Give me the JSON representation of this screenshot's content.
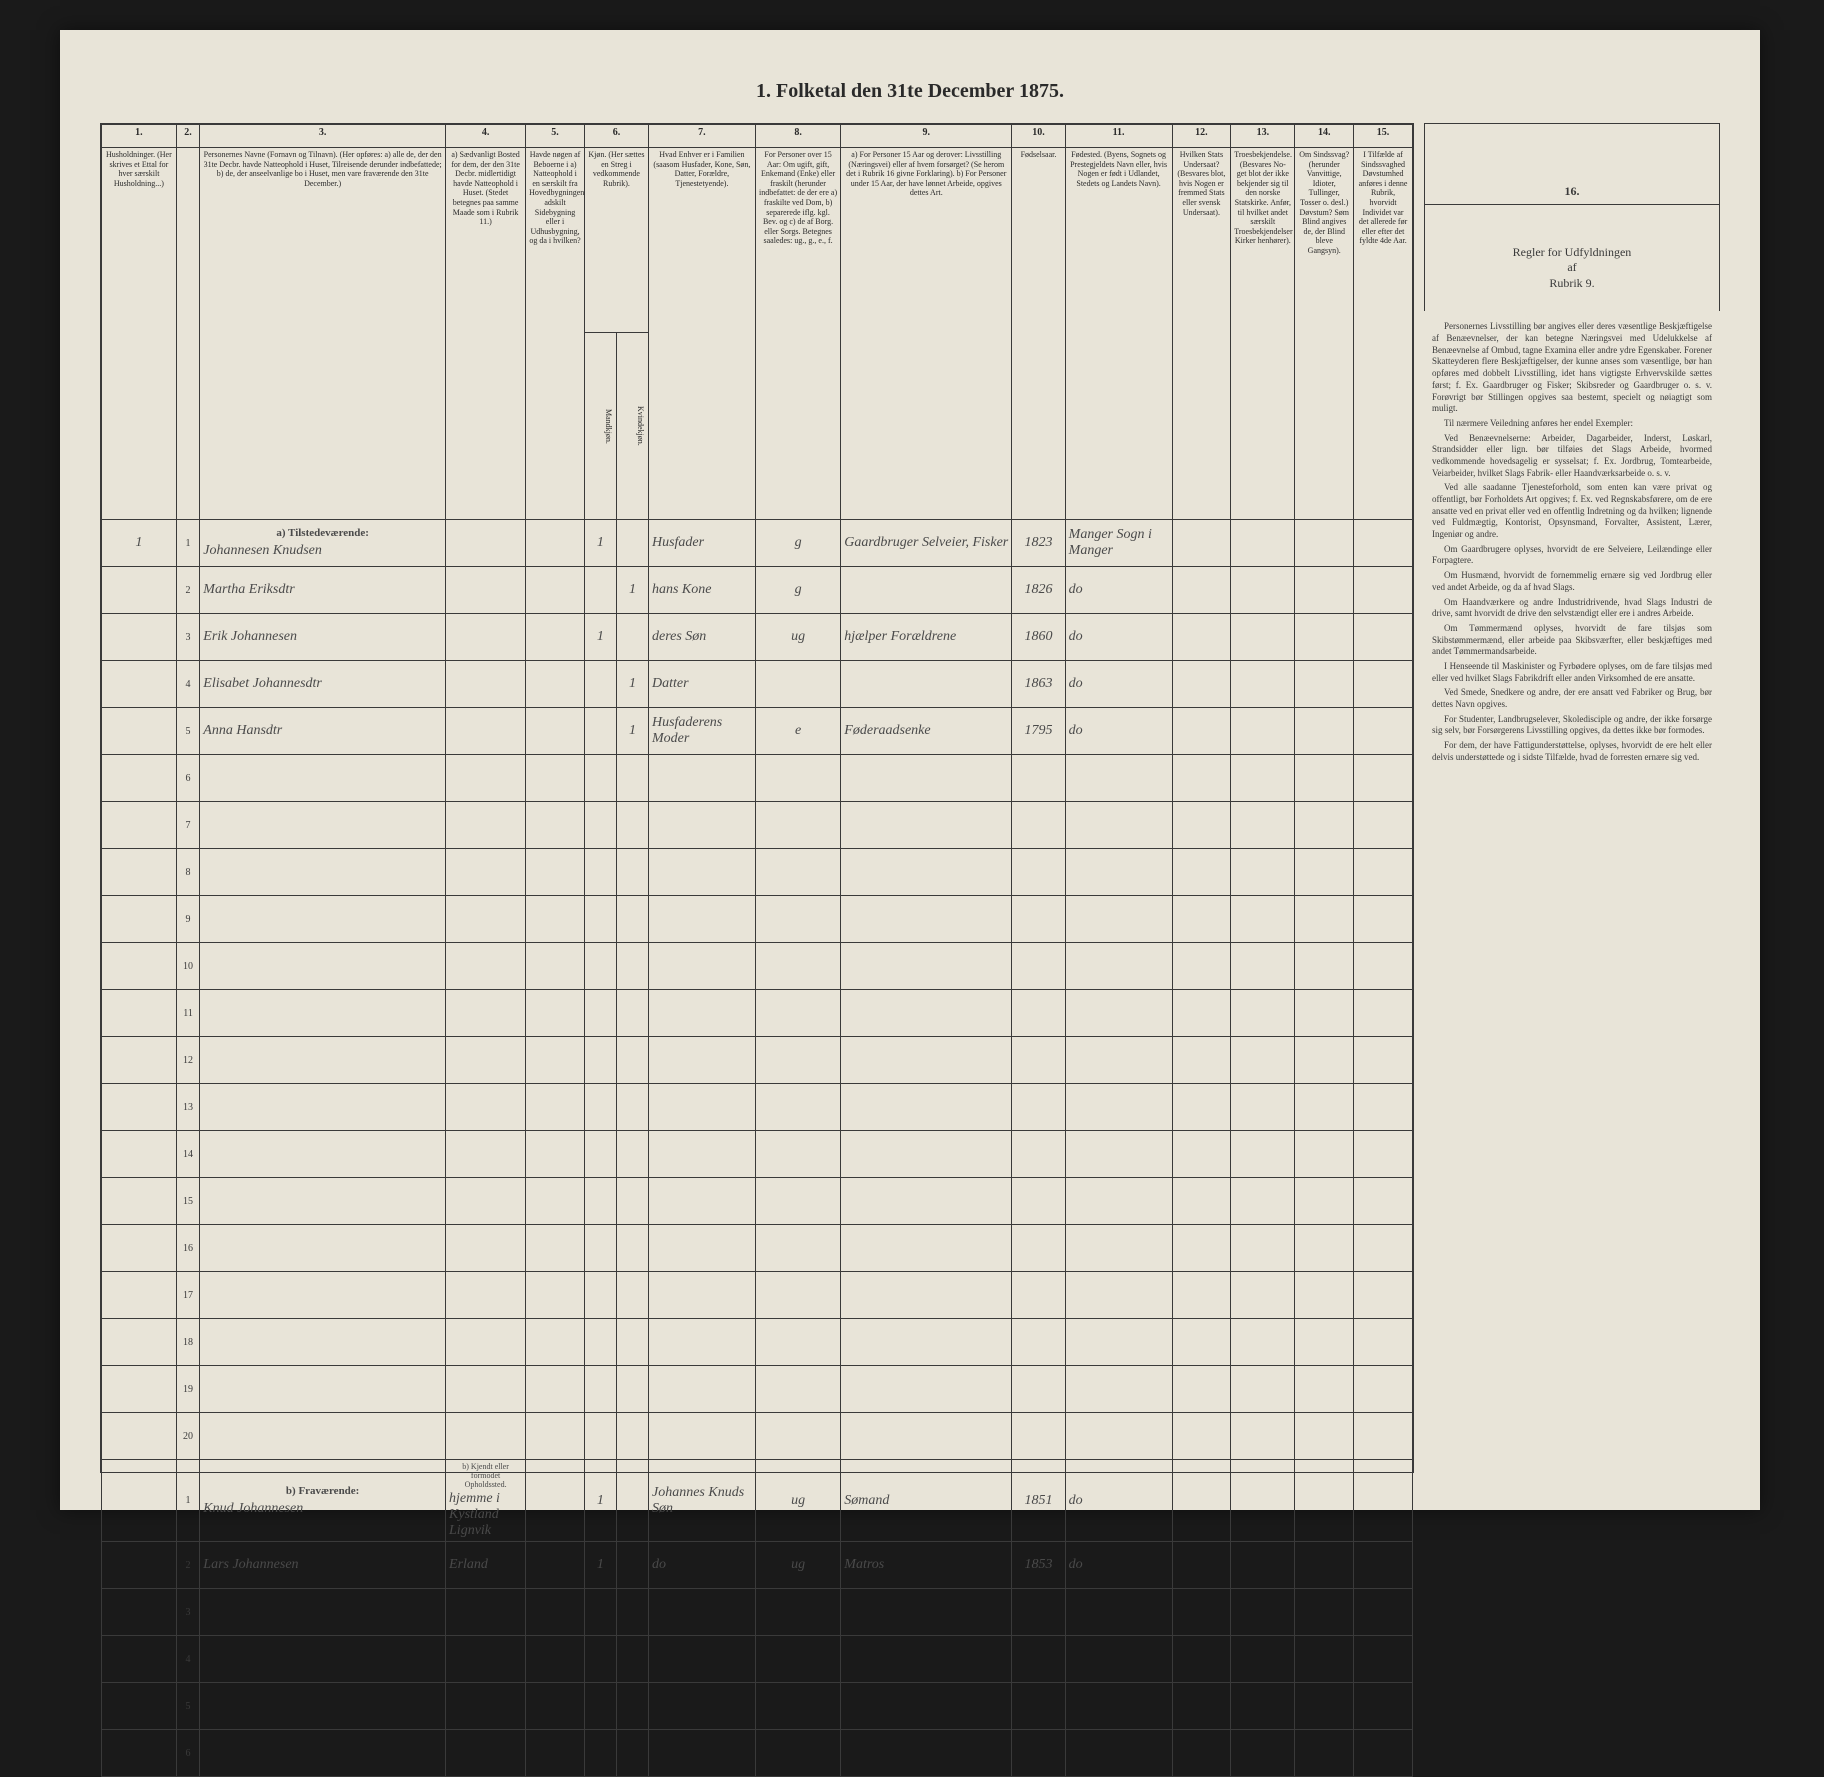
{
  "title": "1. Folketal den 31te December 1875.",
  "columns": {
    "numbers": [
      "1.",
      "2.",
      "3.",
      "4.",
      "5.",
      "6.",
      "7.",
      "8.",
      "9.",
      "10.",
      "11.",
      "12.",
      "13.",
      "14.",
      "15.",
      "16."
    ],
    "headers": [
      "Husholdninger. (Her skrives et Ettal for hver særskilt Husholdning...)",
      "",
      "Personernes Navne (Fornavn og Tilnavn). (Her opføres: a) alle de, der den 31te Decbr. havde Natteophold i Huset, Tilreisende derunder indbefattede; b) de, der anseelvanlige bo i Huset, men vare fraværende den 31te December.)",
      "a) Sædvanligt Bosted for dem, der den 31te Decbr. midlertidigt havde Natteophold i Huset. (Stedet betegnes paa samme Maade som i Rubrik 11.)",
      "Havde nøgen af Beboerne i a) Natteophold i en særskilt fra Hovedbygningen adskilt Sidebygning eller i Udhusbygning, og da i hvilken?",
      "Kjøn. (Her sættes en Streg i vedkommende Rubrik).",
      "Hvad Enhver er i Familien (saasom Husfader, Kone, Søn, Datter, Forældre, Tjenestetyende).",
      "For Personer over 15 Aar: Om ugift, gift, Enkemand (Enke) eller fraskilt (herunder indbefattet: de der ere a) fraskilte ved Dom, b) separerede iflg. kgl. Bev. og c) de af Borg. eller Sorgs. Betegnes saaledes: ug., g., e., f.",
      "a) For Personer 15 Aar og derover: Livsstilling (Næringsvei) eller af hvem forsørget? (Se herom det i Rubrik 16 givne Forklaring). b) For Personer under 15 Aar, der have lønnet Arbeide, opgives dettes Art.",
      "Fødselsaar.",
      "Fødested. (Byens, Sognets og Prestegjeldets Navn eller, hvis Nogen er født i Udlandet, Stedets og Landets Navn).",
      "Hvilken Stats Undersaat? (Besvares blot, hvis Nogen er fremmed Stats eller svensk Undersaat).",
      "Troesbekjendelse. (Besvares No- get blot der ikke bekjender sig til den norske Statskirke. Anfør, til hvilket andet særskilt Troesbekjendelser Kirker henhører).",
      "Om Sindssvag? (herunder Vanvittige, Idioter, Tullinger, Tosser o. desl.) Døvstum? Søm Blind angives de, der Blind bleve Gangsyn).",
      "I Tilfælde af Sindssvaghed Døvstumhed anføres i denne Rubrik, hvorvidt Individet var det allerede før eller efter det fyldte 4de Aar."
    ]
  },
  "sectionA": "a) Tilstedeværende:",
  "sectionB": "b) Fraværende:",
  "rowsA": [
    {
      "n": "1",
      "p": "1",
      "name": "Johannesen Knudsen",
      "c4": "",
      "c5": "",
      "m": "1",
      "f": "",
      "fam": "Husfader",
      "civ": "g",
      "occ": "Gaardbruger Selveier, Fisker",
      "yr": "1823",
      "place": "Manger Sogn i Manger",
      "c12": "",
      "c13": "",
      "c14": "",
      "c15": ""
    },
    {
      "n": "",
      "p": "2",
      "name": "Martha Eriksdtr",
      "c4": "",
      "c5": "",
      "m": "",
      "f": "1",
      "fam": "hans Kone",
      "civ": "g",
      "occ": "",
      "yr": "1826",
      "place": "do",
      "c12": "",
      "c13": "",
      "c14": "",
      "c15": ""
    },
    {
      "n": "",
      "p": "3",
      "name": "Erik Johannesen",
      "c4": "",
      "c5": "",
      "m": "1",
      "f": "",
      "fam": "deres Søn",
      "civ": "ug",
      "occ": "hjælper Forældrene",
      "yr": "1860",
      "place": "do",
      "c12": "",
      "c13": "",
      "c14": "",
      "c15": ""
    },
    {
      "n": "",
      "p": "4",
      "name": "Elisabet Johannesdtr",
      "c4": "",
      "c5": "",
      "m": "",
      "f": "1",
      "fam": "Datter",
      "civ": "",
      "occ": "",
      "yr": "1863",
      "place": "do",
      "c12": "",
      "c13": "",
      "c14": "",
      "c15": ""
    },
    {
      "n": "",
      "p": "5",
      "name": "Anna Hansdtr",
      "c4": "",
      "c5": "",
      "m": "",
      "f": "1",
      "fam": "Husfaderens Moder",
      "civ": "e",
      "occ": "Føderaadsenke",
      "yr": "1795",
      "place": "do",
      "c12": "",
      "c13": "",
      "c14": "",
      "c15": ""
    },
    {
      "n": "",
      "p": "6",
      "name": "",
      "c4": "",
      "c5": "",
      "m": "",
      "f": "",
      "fam": "",
      "civ": "",
      "occ": "",
      "yr": "",
      "place": "",
      "c12": "",
      "c13": "",
      "c14": "",
      "c15": ""
    },
    {
      "n": "",
      "p": "7",
      "name": "",
      "c4": "",
      "c5": "",
      "m": "",
      "f": "",
      "fam": "",
      "civ": "",
      "occ": "",
      "yr": "",
      "place": "",
      "c12": "",
      "c13": "",
      "c14": "",
      "c15": ""
    },
    {
      "n": "",
      "p": "8",
      "name": "",
      "c4": "",
      "c5": "",
      "m": "",
      "f": "",
      "fam": "",
      "civ": "",
      "occ": "",
      "yr": "",
      "place": "",
      "c12": "",
      "c13": "",
      "c14": "",
      "c15": ""
    },
    {
      "n": "",
      "p": "9",
      "name": "",
      "c4": "",
      "c5": "",
      "m": "",
      "f": "",
      "fam": "",
      "civ": "",
      "occ": "",
      "yr": "",
      "place": "",
      "c12": "",
      "c13": "",
      "c14": "",
      "c15": ""
    },
    {
      "n": "",
      "p": "10",
      "name": "",
      "c4": "",
      "c5": "",
      "m": "",
      "f": "",
      "fam": "",
      "civ": "",
      "occ": "",
      "yr": "",
      "place": "",
      "c12": "",
      "c13": "",
      "c14": "",
      "c15": ""
    },
    {
      "n": "",
      "p": "11",
      "name": "",
      "c4": "",
      "c5": "",
      "m": "",
      "f": "",
      "fam": "",
      "civ": "",
      "occ": "",
      "yr": "",
      "place": "",
      "c12": "",
      "c13": "",
      "c14": "",
      "c15": ""
    },
    {
      "n": "",
      "p": "12",
      "name": "",
      "c4": "",
      "c5": "",
      "m": "",
      "f": "",
      "fam": "",
      "civ": "",
      "occ": "",
      "yr": "",
      "place": "",
      "c12": "",
      "c13": "",
      "c14": "",
      "c15": ""
    },
    {
      "n": "",
      "p": "13",
      "name": "",
      "c4": "",
      "c5": "",
      "m": "",
      "f": "",
      "fam": "",
      "civ": "",
      "occ": "",
      "yr": "",
      "place": "",
      "c12": "",
      "c13": "",
      "c14": "",
      "c15": ""
    },
    {
      "n": "",
      "p": "14",
      "name": "",
      "c4": "",
      "c5": "",
      "m": "",
      "f": "",
      "fam": "",
      "civ": "",
      "occ": "",
      "yr": "",
      "place": "",
      "c12": "",
      "c13": "",
      "c14": "",
      "c15": ""
    },
    {
      "n": "",
      "p": "15",
      "name": "",
      "c4": "",
      "c5": "",
      "m": "",
      "f": "",
      "fam": "",
      "civ": "",
      "occ": "",
      "yr": "",
      "place": "",
      "c12": "",
      "c13": "",
      "c14": "",
      "c15": ""
    },
    {
      "n": "",
      "p": "16",
      "name": "",
      "c4": "",
      "c5": "",
      "m": "",
      "f": "",
      "fam": "",
      "civ": "",
      "occ": "",
      "yr": "",
      "place": "",
      "c12": "",
      "c13": "",
      "c14": "",
      "c15": ""
    },
    {
      "n": "",
      "p": "17",
      "name": "",
      "c4": "",
      "c5": "",
      "m": "",
      "f": "",
      "fam": "",
      "civ": "",
      "occ": "",
      "yr": "",
      "place": "",
      "c12": "",
      "c13": "",
      "c14": "",
      "c15": ""
    },
    {
      "n": "",
      "p": "18",
      "name": "",
      "c4": "",
      "c5": "",
      "m": "",
      "f": "",
      "fam": "",
      "civ": "",
      "occ": "",
      "yr": "",
      "place": "",
      "c12": "",
      "c13": "",
      "c14": "",
      "c15": ""
    },
    {
      "n": "",
      "p": "19",
      "name": "",
      "c4": "",
      "c5": "",
      "m": "",
      "f": "",
      "fam": "",
      "civ": "",
      "occ": "",
      "yr": "",
      "place": "",
      "c12": "",
      "c13": "",
      "c14": "",
      "c15": ""
    },
    {
      "n": "",
      "p": "20",
      "name": "",
      "c4": "",
      "c5": "",
      "m": "",
      "f": "",
      "fam": "",
      "civ": "",
      "occ": "",
      "yr": "",
      "place": "",
      "c12": "",
      "c13": "",
      "c14": "",
      "c15": ""
    }
  ],
  "header4b": "b) Kjendt eller formodet Opholdssted.",
  "rowsB": [
    {
      "n": "",
      "p": "1",
      "name": "Knud Johannesen",
      "c4": "hjemme i Kystland Lignvik",
      "c5": "",
      "m": "1",
      "f": "",
      "fam": "Johannes Knuds Søn",
      "civ": "ug",
      "occ": "Sømand",
      "yr": "1851",
      "place": "do",
      "c12": "",
      "c13": "",
      "c14": "",
      "c15": ""
    },
    {
      "n": "",
      "p": "2",
      "name": "Lars Johannesen",
      "c4": "Erland",
      "c5": "",
      "m": "1",
      "f": "",
      "fam": "do",
      "civ": "ug",
      "occ": "Matros",
      "yr": "1853",
      "place": "do",
      "c12": "",
      "c13": "",
      "c14": "",
      "c15": ""
    },
    {
      "n": "",
      "p": "3",
      "name": "",
      "c4": "",
      "c5": "",
      "m": "",
      "f": "",
      "fam": "",
      "civ": "",
      "occ": "",
      "yr": "",
      "place": "",
      "c12": "",
      "c13": "",
      "c14": "",
      "c15": ""
    },
    {
      "n": "",
      "p": "4",
      "name": "",
      "c4": "",
      "c5": "",
      "m": "",
      "f": "",
      "fam": "",
      "civ": "",
      "occ": "",
      "yr": "",
      "place": "",
      "c12": "",
      "c13": "",
      "c14": "",
      "c15": ""
    },
    {
      "n": "",
      "p": "5",
      "name": "",
      "c4": "",
      "c5": "",
      "m": "",
      "f": "",
      "fam": "",
      "civ": "",
      "occ": "",
      "yr": "",
      "place": "",
      "c12": "",
      "c13": "",
      "c14": "",
      "c15": ""
    },
    {
      "n": "",
      "p": "6",
      "name": "",
      "c4": "",
      "c5": "",
      "m": "",
      "f": "",
      "fam": "",
      "civ": "",
      "occ": "",
      "yr": "",
      "place": "",
      "c12": "",
      "c13": "",
      "c14": "",
      "c15": ""
    }
  ],
  "rulesHeader": "Regler for Udfyldningen\naf\nRubrik 9.",
  "rulesParas": [
    "Personernes Livsstilling bør angives eller deres væsentlige Beskjæftigelse af Benæevnelser, der kan betegne Næringsvei med Udelukkelse af Benæevnelse af Ombud, tagne Examina eller andre ydre Egenskaber. Forener Skatteyderen flere Beskjæftigelser, der kunne anses som væsentlige, bør han opføres med dobbelt Livsstilling, idet hans vigtigste Erhvervskilde sættes først; f. Ex. Gaardbruger og Fisker; Skibsreder og Gaardbruger o. s. v. Forøvrigt bør Stillingen opgives saa bestemt, specielt og nøiagtigt som muligt.",
    "Til nærmere Veiledning anføres her endel Exempler:",
    "Ved Benæevnelserne: Arbeider, Dagarbeider, Inderst, Løskarl, Strandsidder eller lign. bør tilføies det Slags Arbeide, hvormed vedkommende hovedsagelig er sysselsat; f. Ex. Jordbrug, Tomtearbeide, Veiarbeider, hvilket Slags Fabrik- eller Haandværksarbeide o. s. v.",
    "Ved alle saadanne Tjenesteforhold, som enten kan være privat og offentligt, bør Forholdets Art opgives; f. Ex. ved Regnskabsførere, om de ere ansatte ved en privat eller ved en offentlig Indretning og da hvilken; lignende ved Fuldmægtig, Kontorist, Opsynsmand, Forvalter, Assistent, Lærer, Ingeniør og andre.",
    "Om Gaardbrugere oplyses, hvorvidt de ere Selveiere, Leilændinge eller Forpagtere.",
    "Om Husmænd, hvorvidt de fornemmelig ernære sig ved Jordbrug eller ved andet Arbeide, og da af hvad Slags.",
    "Om Haandværkere og andre Industridrivende, hvad Slags Industri de drive, samt hvorvidt de drive den selvstændigt eller ere i andres Arbeide.",
    "Om Tømmermænd oplyses, hvorvidt de fare tilsjøs som Skibstømmermænd, eller arbeide paa Skibsværfter, eller beskjæftiges med andet Tømmermandsarbeide.",
    "I Henseende til Maskinister og Fyrbødere oplyses, om de fare tilsjøs med eller ved hvilket Slags Fabrikdrift eller anden Virksomhed de ere ansatte.",
    "Ved Smede, Snedkere og andre, der ere ansatt ved Fabriker og Brug, bør dettes Navn opgives.",
    "For Studenter, Landbrugselever, Skoledisciple og andre, der ikke forsørge sig selv, bør Forsørgerens Livsstilling opgives, da dettes ikke bør formodes.",
    "For dem, der have Fattigunderstøttelse, oplyses, hvorvidt de ere helt eller delvis understøttede og i sidste Tilfælde, hvad de forresten ernære sig ved."
  ],
  "sexHeaders": [
    "Mandkjøn.",
    "Kvindekjøn."
  ]
}
